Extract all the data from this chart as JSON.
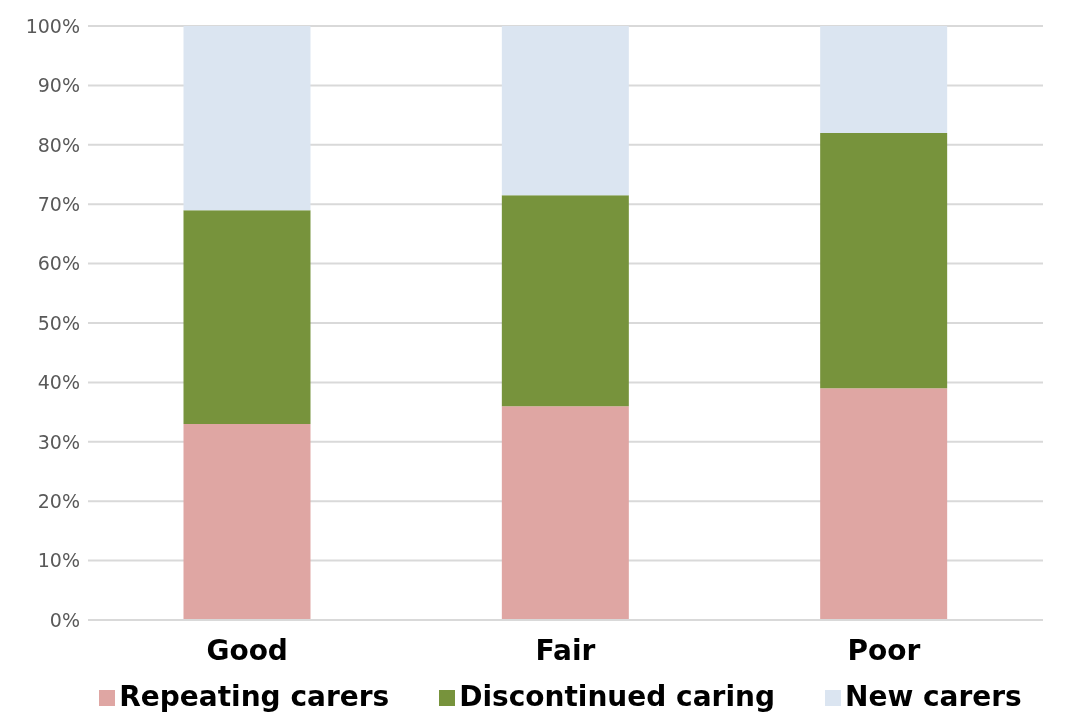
{
  "chart_data": {
    "type": "bar",
    "stacked": true,
    "categories": [
      "Good",
      "Fair",
      "Poor"
    ],
    "series": [
      {
        "name": "Repeating carers",
        "color": "#dfa6a3",
        "values": [
          33,
          36,
          39
        ]
      },
      {
        "name": "Discontinued caring",
        "color": "#77933c",
        "values": [
          36,
          35.5,
          43
        ]
      },
      {
        "name": "New carers",
        "color": "#dbe5f1",
        "values": [
          31,
          28.5,
          18
        ]
      }
    ],
    "ylim": [
      0,
      100
    ],
    "yticks": [
      {
        "value": 0,
        "label": "0%"
      },
      {
        "value": 10,
        "label": "10%"
      },
      {
        "value": 20,
        "label": "20%"
      },
      {
        "value": 30,
        "label": "30%"
      },
      {
        "value": 40,
        "label": "40%"
      },
      {
        "value": 50,
        "label": "50%"
      },
      {
        "value": 60,
        "label": "60%"
      },
      {
        "value": 70,
        "label": "70%"
      },
      {
        "value": 80,
        "label": "80%"
      },
      {
        "value": 90,
        "label": "90%"
      },
      {
        "value": 100,
        "label": "100%"
      }
    ],
    "grid": "y",
    "legend": "bottom"
  }
}
